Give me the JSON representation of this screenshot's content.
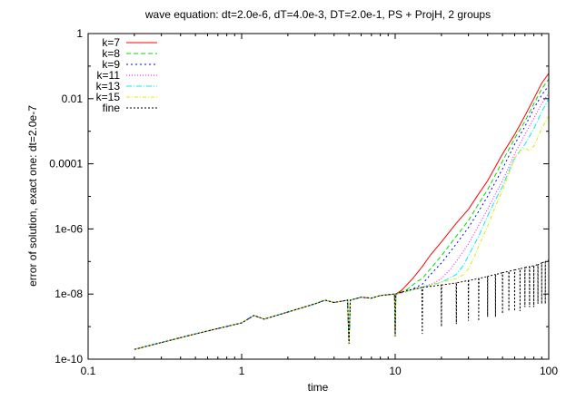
{
  "chart_data": {
    "type": "line",
    "title": "wave equation: dt=2.0e-6, dT=4.0e-3, DT=2.0e-1, PS + ProjH, 2 groups",
    "xlabel": "time",
    "ylabel": "error of solution, exact one: dt=2.0e-7",
    "xscale": "log",
    "yscale": "log",
    "xlim": [
      0.1,
      100
    ],
    "ylim": [
      1e-10,
      1
    ],
    "x_ticks": [
      0.1,
      1,
      10,
      100
    ],
    "x_tick_labels": [
      "0.1",
      "1",
      "10",
      "100"
    ],
    "y_ticks": [
      1e-10,
      1e-08,
      1e-06,
      0.0001,
      0.01,
      1
    ],
    "y_tick_labels": [
      "1e-10",
      "1e-08",
      "1e-06",
      "0.0001",
      "0.01",
      "1"
    ],
    "grid": false,
    "legend": "top-left",
    "common_start": [
      [
        0.2,
        2e-10
      ],
      [
        0.5,
        6e-10
      ],
      [
        1,
        1.3e-09
      ],
      [
        1.2,
        2.2e-09
      ],
      [
        1.4,
        1.7e-09
      ],
      [
        2,
        2.8e-09
      ],
      [
        3,
        5e-09
      ],
      [
        3.5,
        6.5e-09
      ],
      [
        4,
        5.5e-09
      ],
      [
        4.9,
        6.5e-09
      ],
      [
        5,
        3e-10
      ],
      [
        5.1,
        6.5e-09
      ],
      [
        6,
        8e-09
      ],
      [
        7,
        7.5e-09
      ],
      [
        8,
        9e-09
      ],
      [
        9.9,
        1e-08
      ],
      [
        10,
        5e-10
      ],
      [
        10.1,
        1e-08
      ]
    ],
    "series": [
      {
        "name": "k=7",
        "color": "#ff0000",
        "dash": "",
        "points": [
          [
            11,
            1.3e-08
          ],
          [
            13,
            3e-08
          ],
          [
            15,
            7e-08
          ],
          [
            17,
            1.6e-07
          ],
          [
            20,
            4e-07
          ],
          [
            25,
            1.5e-06
          ],
          [
            30,
            4e-06
          ],
          [
            35,
            1.2e-05
          ],
          [
            40,
            3e-05
          ],
          [
            50,
            0.0002
          ],
          [
            60,
            0.0008
          ],
          [
            70,
            0.003
          ],
          [
            80,
            0.01
          ],
          [
            90,
            0.03
          ],
          [
            100,
            0.06
          ]
        ]
      },
      {
        "name": "k=8",
        "color": "#00dd00",
        "dash": "5,3",
        "points": [
          [
            12,
            1.4e-08
          ],
          [
            14,
            2.5e-08
          ],
          [
            15,
            3e-08
          ],
          [
            17,
            6e-08
          ],
          [
            20,
            1.5e-07
          ],
          [
            25,
            6e-07
          ],
          [
            30,
            1.8e-06
          ],
          [
            35,
            6e-06
          ],
          [
            40,
            1.6e-05
          ],
          [
            50,
            0.00012
          ],
          [
            60,
            0.0006
          ],
          [
            70,
            0.002
          ],
          [
            80,
            0.007
          ],
          [
            90,
            0.02
          ],
          [
            100,
            0.04
          ]
        ]
      },
      {
        "name": "k=9",
        "color": "#0000ff",
        "dash": "2,3",
        "points": [
          [
            12,
            1.2e-08
          ],
          [
            15,
            2e-08
          ],
          [
            17,
            4e-08
          ],
          [
            20,
            9e-08
          ],
          [
            25,
            3.5e-07
          ],
          [
            30,
            1.1e-06
          ],
          [
            35,
            3.5e-06
          ],
          [
            40,
            1e-05
          ],
          [
            50,
            7e-05
          ],
          [
            60,
            0.0004
          ],
          [
            70,
            0.0014
          ],
          [
            80,
            0.005
          ],
          [
            90,
            0.013
          ],
          [
            100,
            0.025
          ]
        ]
      },
      {
        "name": "k=11",
        "color": "#ff00ff",
        "dash": "1,2",
        "points": [
          [
            15,
            1.6e-08
          ],
          [
            18,
            2.2e-08
          ],
          [
            20,
            3e-08
          ],
          [
            23,
            6e-08
          ],
          [
            25,
            1e-07
          ],
          [
            30,
            3.5e-07
          ],
          [
            35,
            1.3e-06
          ],
          [
            40,
            4e-06
          ],
          [
            45,
            1.2e-05
          ],
          [
            50,
            3e-05
          ],
          [
            60,
            0.0002
          ],
          [
            70,
            0.0008
          ],
          [
            80,
            0.0025
          ],
          [
            90,
            0.007
          ],
          [
            100,
            0.015
          ]
        ]
      },
      {
        "name": "k=13",
        "color": "#00eeee",
        "dash": "6,2,1,2",
        "points": [
          [
            15,
            1.6e-08
          ],
          [
            20,
            2.3e-08
          ],
          [
            25,
            4e-08
          ],
          [
            28,
            8e-08
          ],
          [
            30,
            1.5e-07
          ],
          [
            35,
            6e-07
          ],
          [
            40,
            2.5e-06
          ],
          [
            45,
            8e-06
          ],
          [
            50,
            2e-05
          ],
          [
            55,
            6e-05
          ],
          [
            60,
            0.00015
          ],
          [
            70,
            0.0004
          ],
          [
            80,
            0.0012
          ],
          [
            90,
            0.004
          ],
          [
            100,
            0.01
          ]
        ]
      },
      {
        "name": "k=15",
        "color": "#e8e800",
        "dash": "4,2,1,2",
        "points": [
          [
            15,
            1.6e-08
          ],
          [
            20,
            2.3e-08
          ],
          [
            25,
            3e-08
          ],
          [
            28,
            4e-08
          ],
          [
            30,
            6e-08
          ],
          [
            33,
            1.5e-07
          ],
          [
            35,
            3e-07
          ],
          [
            40,
            1.2e-06
          ],
          [
            45,
            5e-06
          ],
          [
            50,
            1.5e-05
          ],
          [
            55,
            5e-05
          ],
          [
            60,
            0.00015
          ],
          [
            65,
            0.00025
          ],
          [
            70,
            0.0003
          ],
          [
            75,
            0.00025
          ],
          [
            80,
            0.00035
          ],
          [
            90,
            0.0012
          ],
          [
            100,
            0.003
          ]
        ]
      },
      {
        "name": "fine",
        "color": "#000000",
        "dash": "2,2",
        "points": [
          [
            12,
            1.3e-08
          ],
          [
            14.9,
            1.6e-08
          ],
          [
            15,
            6e-10
          ],
          [
            15.1,
            1.6e-08
          ],
          [
            19.9,
            1.9e-08
          ],
          [
            20,
            1e-09
          ],
          [
            20.1,
            1.9e-08
          ],
          [
            24.9,
            2.2e-08
          ],
          [
            25,
            1.2e-09
          ],
          [
            25.1,
            2.2e-08
          ],
          [
            29.9,
            2.6e-08
          ],
          [
            30,
            1.5e-09
          ],
          [
            30.1,
            2.6e-08
          ],
          [
            34.9,
            3e-08
          ],
          [
            35,
            1.5e-09
          ],
          [
            35.1,
            3e-08
          ],
          [
            39.9,
            3.5e-08
          ],
          [
            40,
            2e-09
          ],
          [
            40.1,
            3.5e-08
          ],
          [
            44.9,
            4e-08
          ],
          [
            45,
            2e-09
          ],
          [
            45.1,
            4e-08
          ],
          [
            49.9,
            4.5e-08
          ],
          [
            50,
            2.5e-09
          ],
          [
            50.1,
            4.5e-08
          ],
          [
            54.9,
            5e-08
          ],
          [
            55,
            3e-09
          ],
          [
            55.1,
            5e-08
          ],
          [
            59.9,
            5.5e-08
          ],
          [
            60,
            3e-09
          ],
          [
            60.1,
            5.5e-08
          ],
          [
            64.9,
            6e-08
          ],
          [
            65,
            3e-09
          ],
          [
            65.1,
            6e-08
          ],
          [
            69.9,
            6.5e-08
          ],
          [
            70,
            4e-09
          ],
          [
            70.1,
            6.5e-08
          ],
          [
            74.9,
            7e-08
          ],
          [
            75,
            4e-09
          ],
          [
            75.1,
            7e-08
          ],
          [
            79.9,
            7.5e-08
          ],
          [
            80,
            4e-09
          ],
          [
            80.1,
            7.5e-08
          ],
          [
            84.9,
            8e-08
          ],
          [
            85,
            5e-09
          ],
          [
            85.1,
            8e-08
          ],
          [
            89.9,
            9e-08
          ],
          [
            90,
            5e-09
          ],
          [
            90.1,
            9e-08
          ],
          [
            94.9,
            1e-07
          ],
          [
            95,
            5e-09
          ],
          [
            95.1,
            1e-07
          ],
          [
            100,
            1.1e-07
          ]
        ]
      }
    ]
  }
}
